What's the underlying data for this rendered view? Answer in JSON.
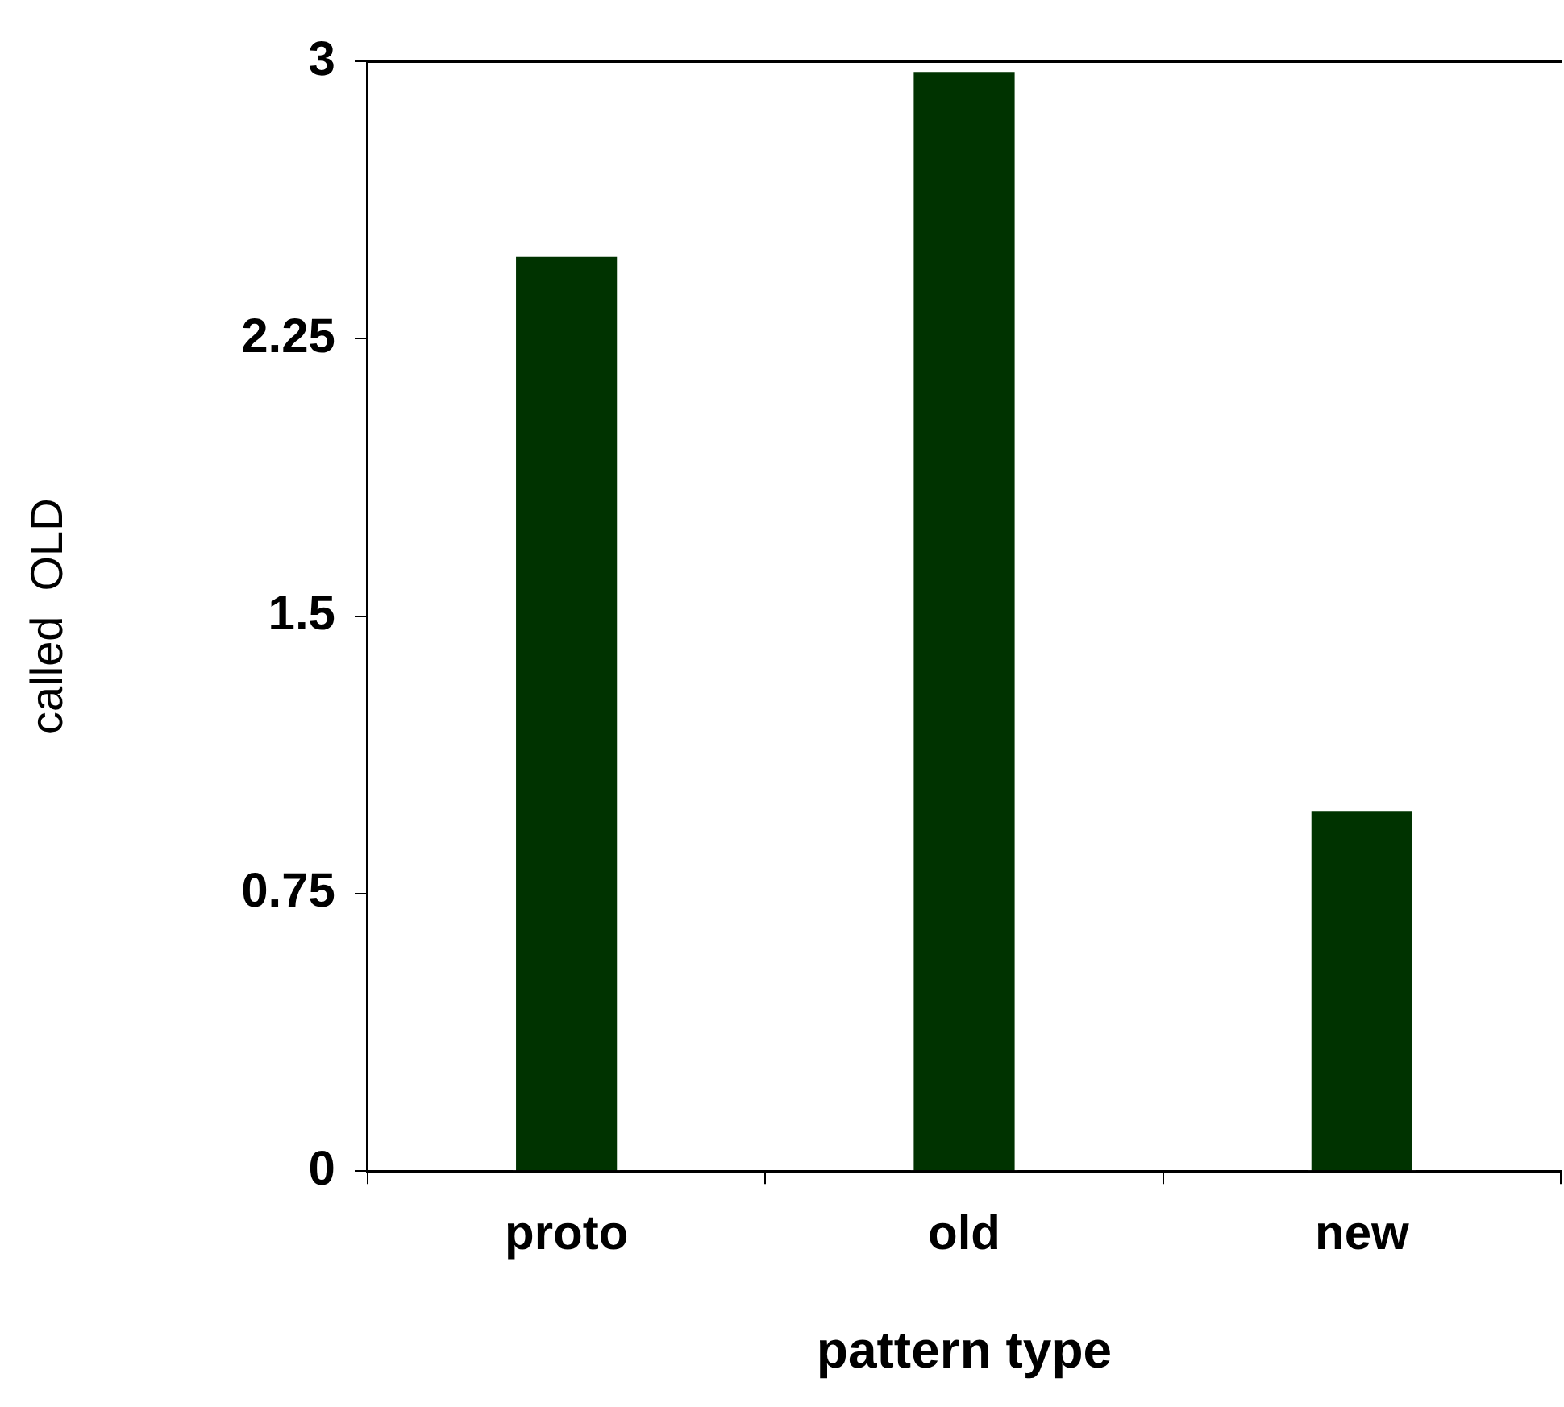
{
  "chart_data": {
    "type": "bar",
    "xlabel": "pattern type",
    "ylabel": "called  OLD",
    "categories": [
      "proto",
      "old",
      "new"
    ],
    "values": [
      2.48,
      2.98,
      0.98
    ],
    "color": "#003300",
    "ylim": [
      0,
      3
    ],
    "yticks": [
      0,
      0.75,
      1.5,
      2.25,
      3
    ],
    "grid": false,
    "legend": false
  }
}
